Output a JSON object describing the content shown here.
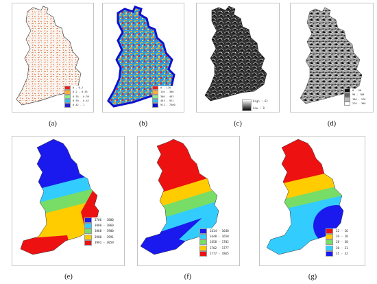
{
  "panels": [
    {
      "caption": "(a)",
      "legend": [
        {
          "label": "0 - 0.2",
          "color": "#ee1c1c"
        },
        {
          "label": "0.2 - 0.35",
          "color": "#ffad33"
        },
        {
          "label": "0.35 - 0.39",
          "color": "#88ee88"
        },
        {
          "label": "0.39 - 0.42",
          "color": "#33bbee"
        },
        {
          "label": "0.42 - 1",
          "color": "#2222cc"
        }
      ]
    },
    {
      "caption": "(b)",
      "legend": [
        {
          "label": "0 - 116",
          "color": "#ee1c1c"
        },
        {
          "label": "116 - 300",
          "color": "#ffad33"
        },
        {
          "label": "300 - 463",
          "color": "#88ee88"
        },
        {
          "label": "463 - 911",
          "color": "#33bbee"
        },
        {
          "label": "911 - 7300",
          "color": "#1111cc"
        }
      ]
    },
    {
      "caption": "(c)",
      "ramp": {
        "high": "High : 62",
        "low": "Low : 0"
      }
    },
    {
      "caption": "(d)",
      "legend": [
        {
          "label": "0 - 90",
          "color": "#111111"
        },
        {
          "label": "90 - 180",
          "color": "#666666"
        },
        {
          "label": "180 - 270",
          "color": "#b8b8b8"
        },
        {
          "label": "270 - 360",
          "color": "#ffffff"
        }
      ]
    },
    {
      "caption": "(e)",
      "legend": [
        {
          "label": "3706 - 3800",
          "color": "#1a1aee"
        },
        {
          "label": "3800 - 3860",
          "color": "#33ccff"
        },
        {
          "label": "3860 - 3900",
          "color": "#77dd66"
        },
        {
          "label": "3900 - 3991",
          "color": "#ffcc00"
        },
        {
          "label": "3991 - 4059",
          "color": "#ee1111"
        }
      ]
    },
    {
      "caption": "(f)",
      "legend": [
        {
          "label": "1614 - 1648",
          "color": "#1a1aee"
        },
        {
          "label": "1648 - 1658",
          "color": "#33ccff"
        },
        {
          "label": "1658 - 1702",
          "color": "#77dd66"
        },
        {
          "label": "1702 - 1777",
          "color": "#ffcc00"
        },
        {
          "label": "1777 - 1865",
          "color": "#ee1111"
        }
      ]
    },
    {
      "caption": "(g)",
      "legend": [
        {
          "label": "22 - 26",
          "color": "#ee1111"
        },
        {
          "label": "26 - 28",
          "color": "#ffcc00"
        },
        {
          "label": "28 - 30",
          "color": "#77dd66"
        },
        {
          "label": "30 - 31",
          "color": "#33ccff"
        },
        {
          "label": "31 - 32",
          "color": "#1a1aee"
        }
      ]
    }
  ]
}
